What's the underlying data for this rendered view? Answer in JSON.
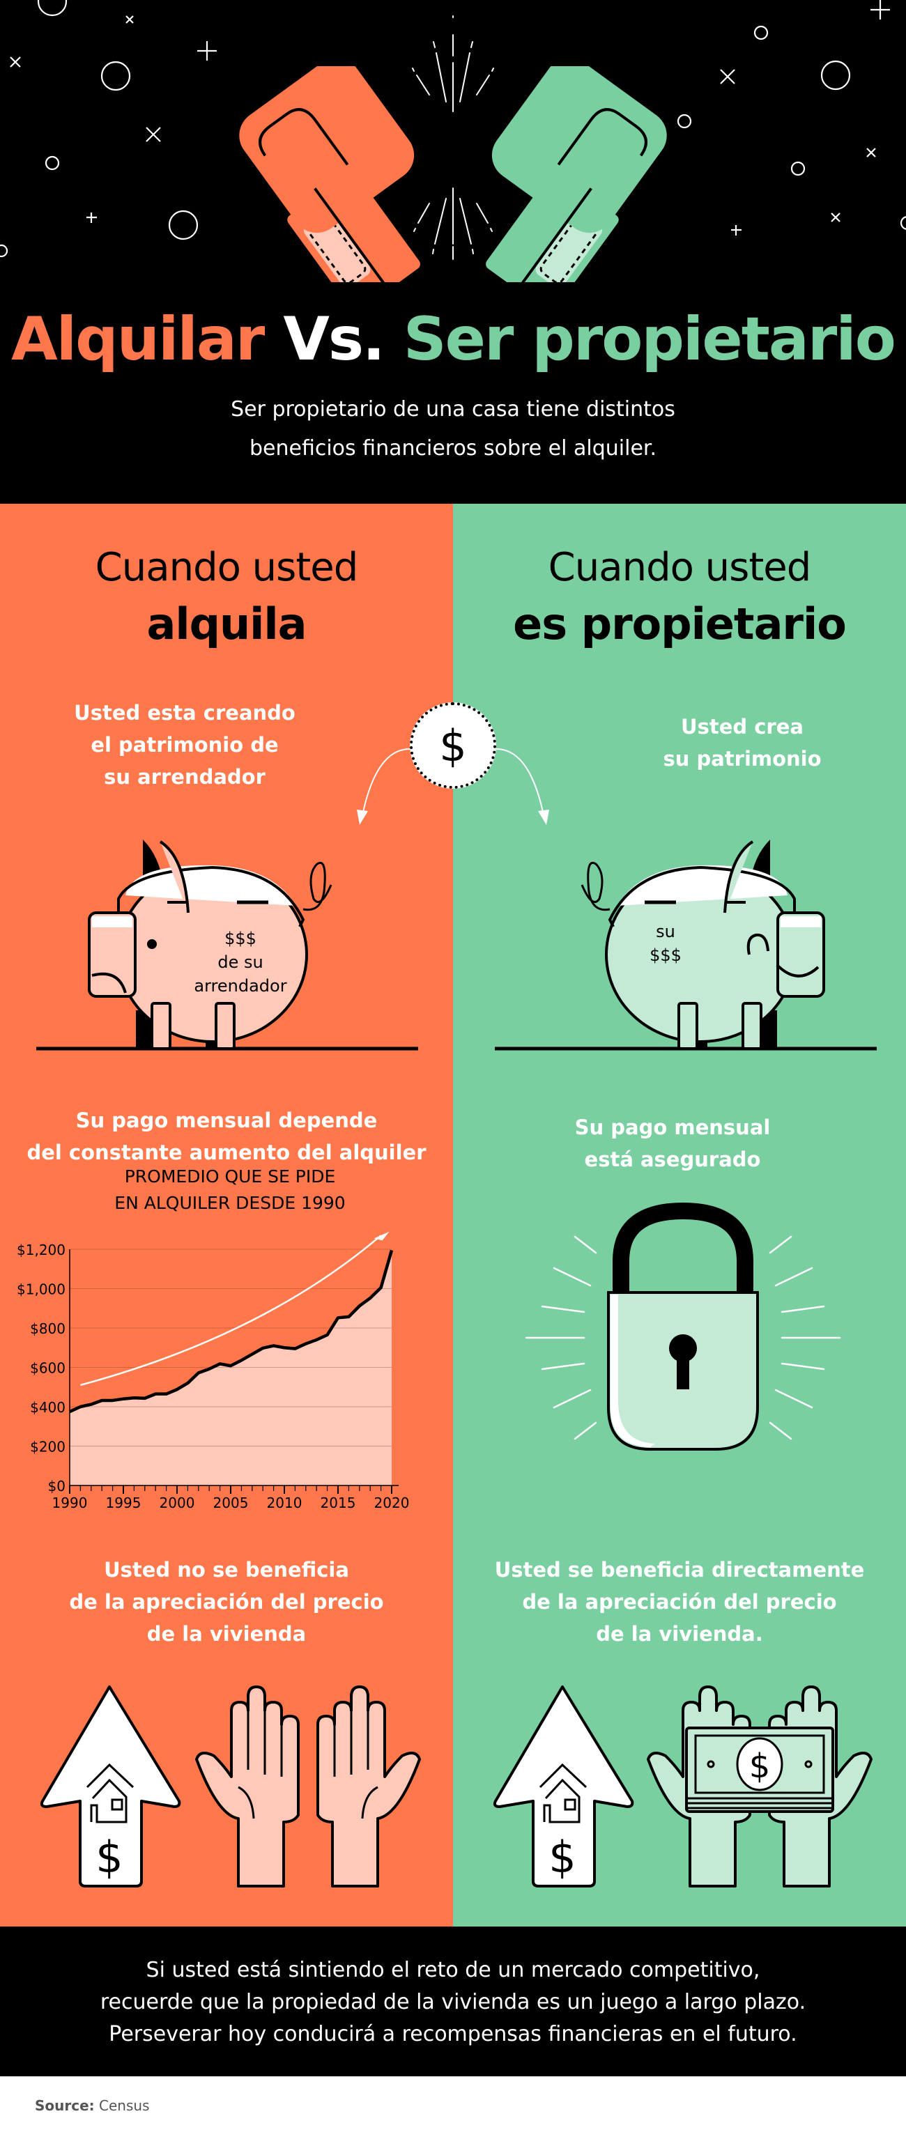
{
  "colors": {
    "rent": "#FF774B",
    "own": "#7ACFA1",
    "rent_light": "#FFC9B9",
    "own_light": "#C4EAD5",
    "black": "#000000",
    "white": "#FFFFFF"
  },
  "header": {
    "title_rent": "Alquilar",
    "title_vs": "Vs.",
    "title_own": "Ser propietario",
    "subtitle_line1": "Ser propietario de una casa tiene distintos",
    "subtitle_line2": "beneficios financieros sobre el alquiler.",
    "icons": [
      "boxing-glove-orange",
      "boxing-glove-green",
      "impact-burst",
      "decorative-stars"
    ]
  },
  "left": {
    "heading_light": "Cuando usted",
    "heading_bold": "alquila",
    "equity_line1": "Usted esta creando",
    "equity_line2": "el patrimonio de",
    "equity_line3": "su arrendador",
    "pig_label_line1": "$$$",
    "pig_label_line2": "de su arrendador",
    "payment_line1": "Su pago mensual depende",
    "payment_line2": "del constante aumento del alquiler",
    "chart_caption_line1": "PROMEDIO QUE SE PIDE",
    "chart_caption_line2": "EN ALQUILER DESDE 1990",
    "appreciation_line1": "Usted no se beneficia",
    "appreciation_line2": "de la apreciación del precio",
    "appreciation_line3": "de la vivienda"
  },
  "right": {
    "heading_light": "Cuando usted",
    "heading_bold": "es propietario",
    "equity_line1": "Usted crea",
    "equity_line2": "su patrimonio",
    "pig_label_line1": "su",
    "pig_label_line2": "$$$",
    "payment_line1": "Su pago mensual",
    "payment_line2": "está asegurado",
    "appreciation_line1": "Usted se beneficia directamente",
    "appreciation_line2": "de la apreciación del precio",
    "appreciation_line3": "de la vivienda."
  },
  "coin": {
    "symbol": "$"
  },
  "footer": {
    "line1": "Si usted está sintiendo el reto de un mercado competitivo,",
    "line2": "recuerde que la propiedad de la vivienda es un juego a largo plazo.",
    "line3": "Perseverar hoy conducirá a recompensas financieras en el futuro.",
    "source_label": "Source:",
    "source_value": "Census"
  },
  "chart_data": {
    "type": "area",
    "title": "PROMEDIO QUE SE PIDE EN ALQUILER DESDE 1990",
    "xlabel": "",
    "ylabel": "",
    "x": [
      1990,
      1991,
      1992,
      1993,
      1994,
      1995,
      1996,
      1997,
      1998,
      1999,
      2000,
      2001,
      2002,
      2003,
      2004,
      2005,
      2006,
      2007,
      2008,
      2009,
      2010,
      2011,
      2012,
      2013,
      2014,
      2015,
      2016,
      2017,
      2018,
      2019,
      2020
    ],
    "values": [
      375,
      400,
      412,
      432,
      432,
      440,
      445,
      443,
      465,
      465,
      488,
      520,
      572,
      592,
      618,
      608,
      636,
      667,
      698,
      710,
      700,
      695,
      720,
      740,
      765,
      852,
      857,
      912,
      952,
      1005,
      1195
    ],
    "ylim": [
      0,
      1200
    ],
    "xlim": [
      1990,
      2020
    ],
    "y_ticks": [
      0,
      200,
      400,
      600,
      800,
      1000,
      1200
    ],
    "y_tick_labels": [
      "$0",
      "$200",
      "$400",
      "$600",
      "$800",
      "$1,000",
      "$1,200"
    ],
    "x_ticks": [
      1990,
      1995,
      2000,
      2005,
      2010,
      2015,
      2020
    ],
    "x_tick_labels": [
      "1990",
      "1995",
      "2000",
      "2005",
      "2010",
      "2015",
      "2020"
    ],
    "grid": true,
    "legend": "none",
    "annotations": [
      "upward trend arrow (white curve)"
    ],
    "fill_color": "#FFC9B9",
    "line_color": "#000000"
  }
}
